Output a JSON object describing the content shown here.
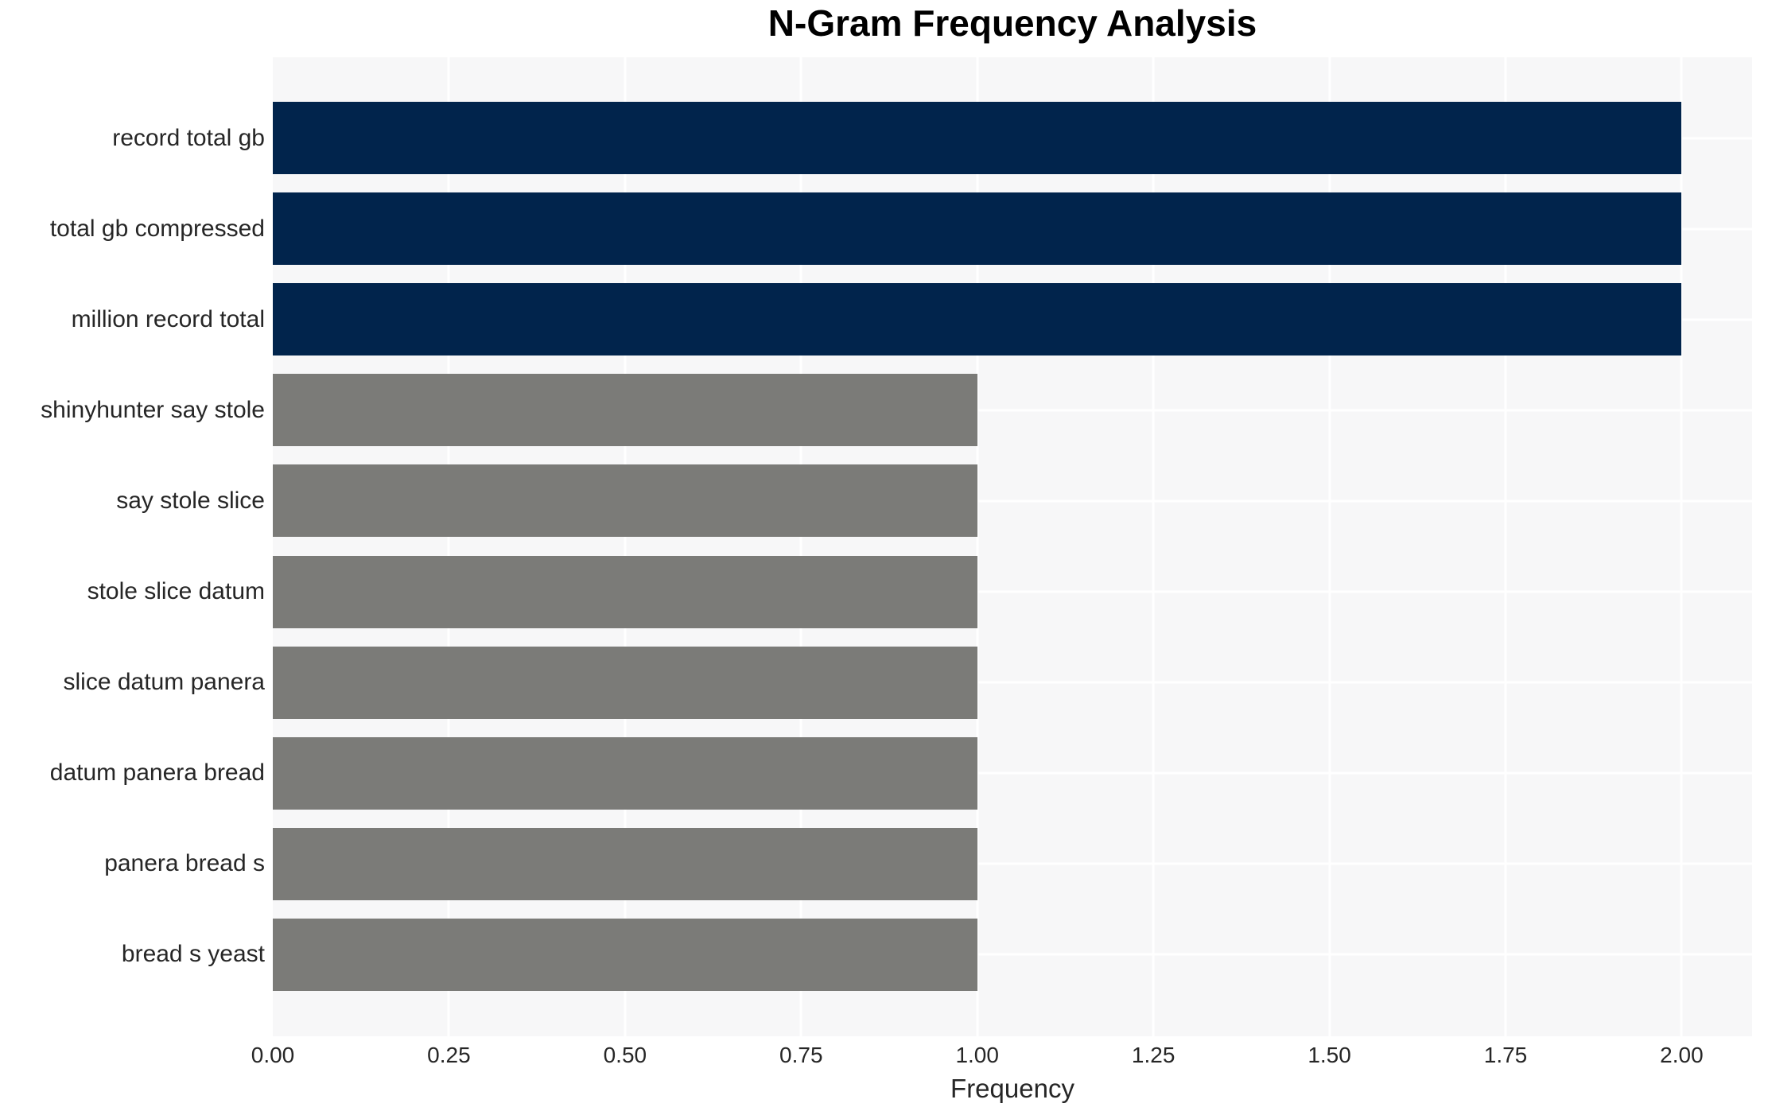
{
  "figure": {
    "background": "#ffffff"
  },
  "chart_data": {
    "type": "bar",
    "orientation": "horizontal",
    "title": "N-Gram Frequency Analysis",
    "xlabel": "Frequency",
    "ylabel": "",
    "categories": [
      "record total gb",
      "total gb compressed",
      "million record total",
      "shinyhunter say stole",
      "say stole slice",
      "stole slice datum",
      "slice datum panera",
      "datum panera bread",
      "panera bread s",
      "bread s yeast"
    ],
    "values": [
      2,
      2,
      2,
      1,
      1,
      1,
      1,
      1,
      1,
      1
    ],
    "bar_colors": [
      "#01244c",
      "#01244c",
      "#01244c",
      "#7b7b78",
      "#7b7b78",
      "#7b7b78",
      "#7b7b78",
      "#7b7b78",
      "#7b7b78",
      "#7b7b78"
    ],
    "xlim": [
      0,
      2.1
    ],
    "xticks": [
      {
        "label": "0.00",
        "value": 0
      },
      {
        "label": "0.25",
        "value": 0.25
      },
      {
        "label": "0.50",
        "value": 0.5
      },
      {
        "label": "0.75",
        "value": 0.75
      },
      {
        "label": "1.00",
        "value": 1
      },
      {
        "label": "1.25",
        "value": 1.25
      },
      {
        "label": "1.50",
        "value": 1.5
      },
      {
        "label": "1.75",
        "value": 1.75
      },
      {
        "label": "2.00",
        "value": 2
      }
    ],
    "grid": true,
    "legend": false,
    "styles": {
      "plot_background": "#f7f7f8",
      "grid_color": "#ffffff",
      "text_color": "#262626",
      "title_color": "#000000",
      "high_freq_color": "#01244c",
      "low_freq_color": "#7b7b78"
    }
  }
}
